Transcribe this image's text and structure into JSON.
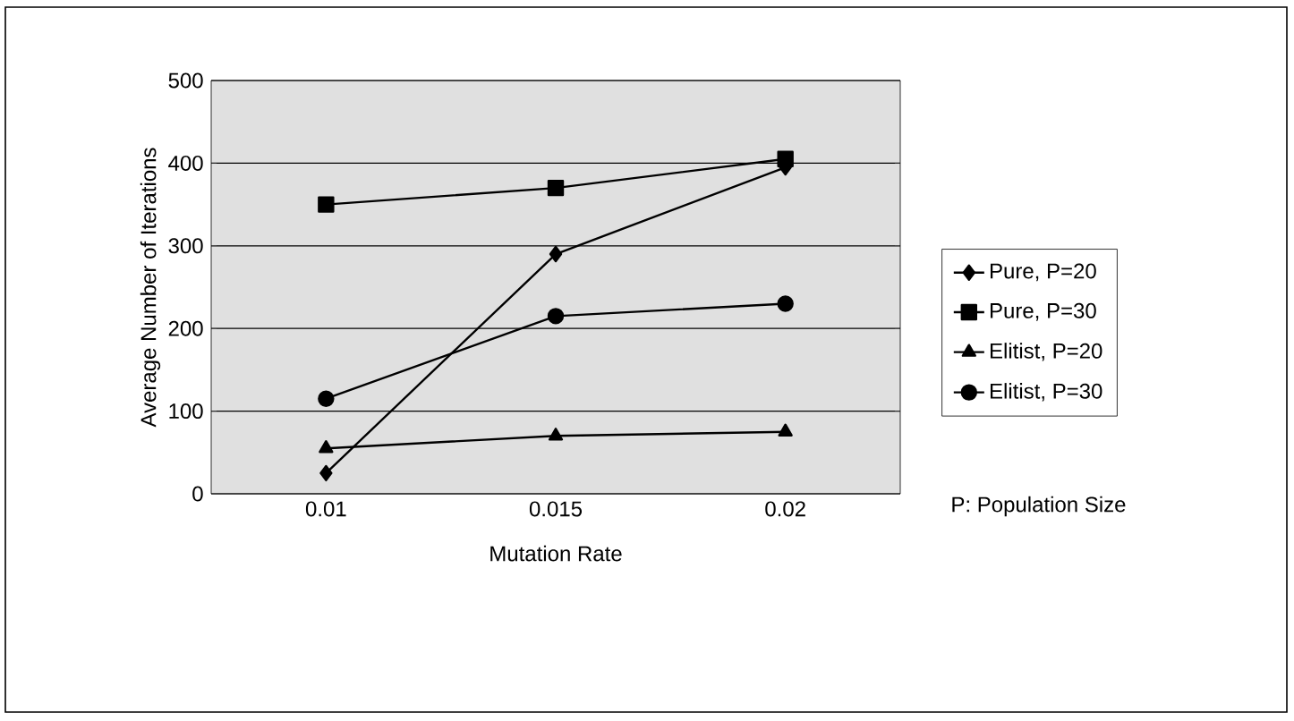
{
  "chart_data": {
    "type": "line",
    "xlabel": "Mutation Rate",
    "ylabel": "Average Number of Iterations",
    "categories": [
      "0.01",
      "0.015",
      "0.02"
    ],
    "series": [
      {
        "name": "Pure, P=20",
        "color": "#000000",
        "marker": "diamond",
        "values": [
          25,
          290,
          395
        ]
      },
      {
        "name": "Pure, P=30",
        "color": "#000000",
        "marker": "square",
        "values": [
          350,
          370,
          405
        ]
      },
      {
        "name": "Elitist, P=20",
        "color": "#000000",
        "marker": "triangle",
        "values": [
          55,
          70,
          75
        ]
      },
      {
        "name": "Elitist, P=30",
        "color": "#000000",
        "marker": "circle",
        "values": [
          115,
          215,
          230
        ]
      }
    ],
    "ylim": [
      0,
      500
    ],
    "yticks": [
      0,
      100,
      200,
      300,
      400,
      500
    ],
    "grid": "y",
    "legend": "right",
    "annotations": [
      "P: Population Size"
    ]
  }
}
